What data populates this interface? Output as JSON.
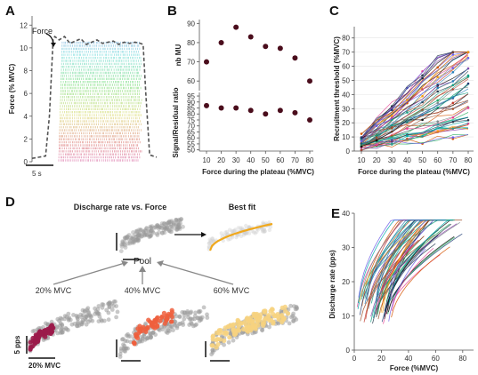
{
  "panels": {
    "A": "A",
    "B": "B",
    "C": "C",
    "D": "D",
    "E": "E"
  },
  "chart_data": [
    {
      "panel": "A",
      "type": "line",
      "ylabel": "Force (% MVC)",
      "yticks": [
        0,
        2,
        4,
        6,
        8,
        10,
        12
      ],
      "ylim": [
        0,
        12.8
      ],
      "annotation": "Force",
      "scalebar_label": "5 s",
      "force_trace": [
        [
          0,
          0.3
        ],
        [
          2.5,
          0.5
        ],
        [
          3.2,
          4
        ],
        [
          3.9,
          10.8
        ],
        [
          4.2,
          11
        ],
        [
          5,
          10.7
        ],
        [
          6,
          11
        ],
        [
          7,
          10.4
        ],
        [
          8,
          10.6
        ],
        [
          9,
          10.8
        ],
        [
          10,
          10.3
        ],
        [
          11,
          10.5
        ],
        [
          12,
          10.7
        ],
        [
          13,
          10.4
        ],
        [
          14,
          10.5
        ],
        [
          15,
          10.6
        ],
        [
          16,
          10.3
        ],
        [
          17,
          10.5
        ],
        [
          18,
          10.4
        ],
        [
          19,
          10.5
        ],
        [
          20,
          10.4
        ],
        [
          20.5,
          10.3
        ],
        [
          21,
          6
        ],
        [
          21.7,
          0.6
        ],
        [
          23,
          0.4
        ]
      ]
    },
    {
      "panel": "B-top",
      "type": "scatter",
      "ylabel": "nb MU",
      "yticks": [
        60,
        70,
        80,
        90
      ],
      "ylim": [
        55,
        92
      ],
      "x": [
        10,
        20,
        30,
        40,
        50,
        60,
        70,
        80
      ],
      "y": [
        70,
        80,
        88,
        83,
        78,
        77,
        72,
        60
      ]
    },
    {
      "panel": "B-bottom",
      "type": "scatter",
      "ylabel": "Signal/Residual ratio",
      "xlabel": "Force during the plateau (%MVC)",
      "xticks": [
        10,
        20,
        30,
        40,
        50,
        60,
        70,
        80
      ],
      "yticks": [
        50,
        55,
        60,
        65,
        70,
        75,
        80,
        85,
        90,
        95
      ],
      "ylim": [
        49,
        98
      ],
      "x": [
        10,
        20,
        30,
        40,
        50,
        60,
        70,
        80
      ],
      "y": [
        87,
        85,
        85,
        83,
        80,
        83,
        81,
        75
      ]
    },
    {
      "panel": "C",
      "type": "line",
      "ylabel": "Recruitment threshold (%MVC)",
      "xlabel": "Force during the plateau (%MVC)",
      "xticks": [
        10,
        20,
        30,
        40,
        50,
        60,
        70,
        80
      ],
      "yticks": [
        0,
        10,
        20,
        30,
        40,
        50,
        60,
        70,
        80
      ],
      "ylim": [
        0,
        88
      ],
      "x": [
        10,
        20,
        30,
        40,
        50,
        60,
        70,
        80
      ],
      "series_count": 60
    },
    {
      "panel": "D",
      "type": "scatter",
      "title_left": "Discharge rate vs. Force",
      "title_right": "Best fit",
      "pool_label": "Pool",
      "conditions": [
        "20% MVC",
        "40% MVC",
        "60% MVC"
      ],
      "condition_colors": [
        "#9b1b4a",
        "#ef5f3d",
        "#f7d27f"
      ],
      "pool_color": "#9a9a9a",
      "fit_color": "#f0a81c",
      "scalebar_y": "5 pps",
      "scalebar_x": "20% MVC"
    },
    {
      "panel": "E",
      "type": "line",
      "ylabel": "Discharge rate (pps)",
      "xlabel": "Force (%MVC)",
      "xticks": [
        0,
        20,
        40,
        60,
        80
      ],
      "yticks": [
        0,
        10,
        20,
        30,
        40
      ],
      "xlim": [
        0,
        88
      ],
      "ylim": [
        0,
        40
      ],
      "series_count": 60
    }
  ]
}
